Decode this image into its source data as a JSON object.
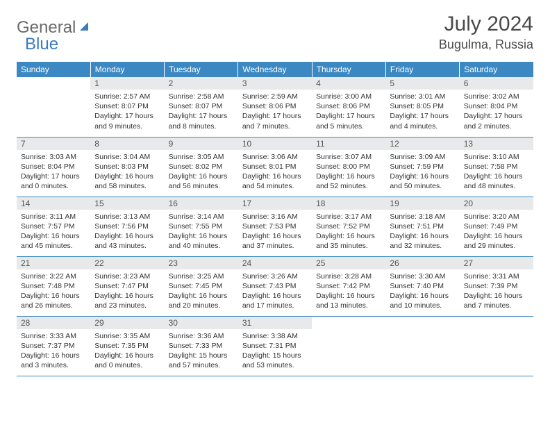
{
  "logo": {
    "general": "General",
    "blue": "Blue"
  },
  "title": "July 2024",
  "location": "Bugulma, Russia",
  "colors": {
    "header_bg": "#3b88c3",
    "header_text": "#ffffff",
    "daynum_bg": "#e8e9ea",
    "border": "#3b88c3",
    "logo_gray": "#6a6a6a",
    "logo_blue": "#3b7bbf"
  },
  "weekdays": [
    "Sunday",
    "Monday",
    "Tuesday",
    "Wednesday",
    "Thursday",
    "Friday",
    "Saturday"
  ],
  "weeks": [
    [
      {
        "day": "",
        "sunrise": "",
        "sunset": "",
        "daylight": ""
      },
      {
        "day": "1",
        "sunrise": "Sunrise: 2:57 AM",
        "sunset": "Sunset: 8:07 PM",
        "daylight": "Daylight: 17 hours and 9 minutes."
      },
      {
        "day": "2",
        "sunrise": "Sunrise: 2:58 AM",
        "sunset": "Sunset: 8:07 PM",
        "daylight": "Daylight: 17 hours and 8 minutes."
      },
      {
        "day": "3",
        "sunrise": "Sunrise: 2:59 AM",
        "sunset": "Sunset: 8:06 PM",
        "daylight": "Daylight: 17 hours and 7 minutes."
      },
      {
        "day": "4",
        "sunrise": "Sunrise: 3:00 AM",
        "sunset": "Sunset: 8:06 PM",
        "daylight": "Daylight: 17 hours and 5 minutes."
      },
      {
        "day": "5",
        "sunrise": "Sunrise: 3:01 AM",
        "sunset": "Sunset: 8:05 PM",
        "daylight": "Daylight: 17 hours and 4 minutes."
      },
      {
        "day": "6",
        "sunrise": "Sunrise: 3:02 AM",
        "sunset": "Sunset: 8:04 PM",
        "daylight": "Daylight: 17 hours and 2 minutes."
      }
    ],
    [
      {
        "day": "7",
        "sunrise": "Sunrise: 3:03 AM",
        "sunset": "Sunset: 8:04 PM",
        "daylight": "Daylight: 17 hours and 0 minutes."
      },
      {
        "day": "8",
        "sunrise": "Sunrise: 3:04 AM",
        "sunset": "Sunset: 8:03 PM",
        "daylight": "Daylight: 16 hours and 58 minutes."
      },
      {
        "day": "9",
        "sunrise": "Sunrise: 3:05 AM",
        "sunset": "Sunset: 8:02 PM",
        "daylight": "Daylight: 16 hours and 56 minutes."
      },
      {
        "day": "10",
        "sunrise": "Sunrise: 3:06 AM",
        "sunset": "Sunset: 8:01 PM",
        "daylight": "Daylight: 16 hours and 54 minutes."
      },
      {
        "day": "11",
        "sunrise": "Sunrise: 3:07 AM",
        "sunset": "Sunset: 8:00 PM",
        "daylight": "Daylight: 16 hours and 52 minutes."
      },
      {
        "day": "12",
        "sunrise": "Sunrise: 3:09 AM",
        "sunset": "Sunset: 7:59 PM",
        "daylight": "Daylight: 16 hours and 50 minutes."
      },
      {
        "day": "13",
        "sunrise": "Sunrise: 3:10 AM",
        "sunset": "Sunset: 7:58 PM",
        "daylight": "Daylight: 16 hours and 48 minutes."
      }
    ],
    [
      {
        "day": "14",
        "sunrise": "Sunrise: 3:11 AM",
        "sunset": "Sunset: 7:57 PM",
        "daylight": "Daylight: 16 hours and 45 minutes."
      },
      {
        "day": "15",
        "sunrise": "Sunrise: 3:13 AM",
        "sunset": "Sunset: 7:56 PM",
        "daylight": "Daylight: 16 hours and 43 minutes."
      },
      {
        "day": "16",
        "sunrise": "Sunrise: 3:14 AM",
        "sunset": "Sunset: 7:55 PM",
        "daylight": "Daylight: 16 hours and 40 minutes."
      },
      {
        "day": "17",
        "sunrise": "Sunrise: 3:16 AM",
        "sunset": "Sunset: 7:53 PM",
        "daylight": "Daylight: 16 hours and 37 minutes."
      },
      {
        "day": "18",
        "sunrise": "Sunrise: 3:17 AM",
        "sunset": "Sunset: 7:52 PM",
        "daylight": "Daylight: 16 hours and 35 minutes."
      },
      {
        "day": "19",
        "sunrise": "Sunrise: 3:18 AM",
        "sunset": "Sunset: 7:51 PM",
        "daylight": "Daylight: 16 hours and 32 minutes."
      },
      {
        "day": "20",
        "sunrise": "Sunrise: 3:20 AM",
        "sunset": "Sunset: 7:49 PM",
        "daylight": "Daylight: 16 hours and 29 minutes."
      }
    ],
    [
      {
        "day": "21",
        "sunrise": "Sunrise: 3:22 AM",
        "sunset": "Sunset: 7:48 PM",
        "daylight": "Daylight: 16 hours and 26 minutes."
      },
      {
        "day": "22",
        "sunrise": "Sunrise: 3:23 AM",
        "sunset": "Sunset: 7:47 PM",
        "daylight": "Daylight: 16 hours and 23 minutes."
      },
      {
        "day": "23",
        "sunrise": "Sunrise: 3:25 AM",
        "sunset": "Sunset: 7:45 PM",
        "daylight": "Daylight: 16 hours and 20 minutes."
      },
      {
        "day": "24",
        "sunrise": "Sunrise: 3:26 AM",
        "sunset": "Sunset: 7:43 PM",
        "daylight": "Daylight: 16 hours and 17 minutes."
      },
      {
        "day": "25",
        "sunrise": "Sunrise: 3:28 AM",
        "sunset": "Sunset: 7:42 PM",
        "daylight": "Daylight: 16 hours and 13 minutes."
      },
      {
        "day": "26",
        "sunrise": "Sunrise: 3:30 AM",
        "sunset": "Sunset: 7:40 PM",
        "daylight": "Daylight: 16 hours and 10 minutes."
      },
      {
        "day": "27",
        "sunrise": "Sunrise: 3:31 AM",
        "sunset": "Sunset: 7:39 PM",
        "daylight": "Daylight: 16 hours and 7 minutes."
      }
    ],
    [
      {
        "day": "28",
        "sunrise": "Sunrise: 3:33 AM",
        "sunset": "Sunset: 7:37 PM",
        "daylight": "Daylight: 16 hours and 3 minutes."
      },
      {
        "day": "29",
        "sunrise": "Sunrise: 3:35 AM",
        "sunset": "Sunset: 7:35 PM",
        "daylight": "Daylight: 16 hours and 0 minutes."
      },
      {
        "day": "30",
        "sunrise": "Sunrise: 3:36 AM",
        "sunset": "Sunset: 7:33 PM",
        "daylight": "Daylight: 15 hours and 57 minutes."
      },
      {
        "day": "31",
        "sunrise": "Sunrise: 3:38 AM",
        "sunset": "Sunset: 7:31 PM",
        "daylight": "Daylight: 15 hours and 53 minutes."
      },
      {
        "day": "",
        "sunrise": "",
        "sunset": "",
        "daylight": ""
      },
      {
        "day": "",
        "sunrise": "",
        "sunset": "",
        "daylight": ""
      },
      {
        "day": "",
        "sunrise": "",
        "sunset": "",
        "daylight": ""
      }
    ]
  ]
}
